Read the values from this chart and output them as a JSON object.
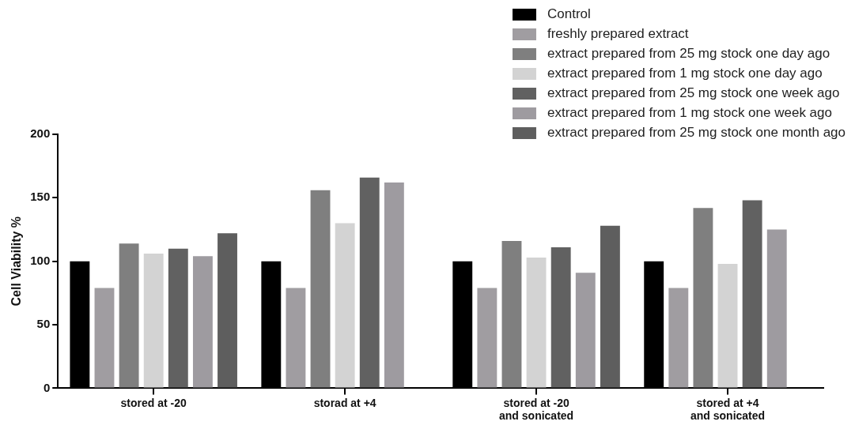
{
  "chart_data": {
    "type": "bar",
    "ylabel": "Cell Viability %",
    "categories": [
      "stored at -20",
      "storad at +4",
      "stored at -20\nand sonicated",
      "stored at +4\nand sonicated"
    ],
    "series": [
      {
        "name": "Control",
        "color": "#000000",
        "values": [
          100,
          100,
          100,
          100
        ]
      },
      {
        "name": "freshly prepared extract",
        "color": "#a09da1",
        "values": [
          79,
          79,
          79,
          79
        ]
      },
      {
        "name": "extract prepared from 25 mg stock one day ago",
        "color": "#7f7f7f",
        "values": [
          114,
          156,
          116,
          142
        ]
      },
      {
        "name": "extract prepared from 1 mg stock one day ago",
        "color": "#d3d3d3",
        "values": [
          106,
          130,
          103,
          98
        ]
      },
      {
        "name": "extract prepared from 25 mg stock one week ago",
        "color": "#616161",
        "values": [
          110,
          166,
          111,
          148
        ]
      },
      {
        "name": "extract prepared from 1 mg stock one week ago",
        "color": "#9e9ba0",
        "values": [
          104,
          162,
          91,
          125
        ]
      },
      {
        "name": "extract prepared from 25 mg stock one month ago",
        "color": "#5e5e5e",
        "values": [
          122,
          null,
          128,
          null
        ]
      }
    ],
    "ylim": [
      0,
      200
    ],
    "yticks": [
      0,
      50,
      100,
      150,
      200
    ],
    "grid": false,
    "legend": "top right"
  }
}
